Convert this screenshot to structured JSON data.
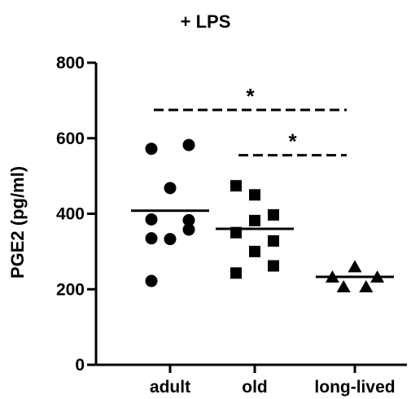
{
  "chart_data": {
    "type": "scatter",
    "title": "+ LPS",
    "xlabel": "",
    "ylabel": "PGE2 (pg/ml)",
    "categories": [
      "adult",
      "old",
      "long-lived"
    ],
    "ylim": [
      0,
      800
    ],
    "yticks": [
      0,
      200,
      400,
      600,
      800
    ],
    "ytick_labels": [
      "0",
      "200",
      "400",
      "600",
      "800"
    ],
    "series": [
      {
        "category": "adult",
        "marker": "circle",
        "mean": 408,
        "points": [
          {
            "dx": -0.25,
            "y": 572
          },
          {
            "dx": 0.25,
            "y": 582
          },
          {
            "dx": 0.0,
            "y": 468
          },
          {
            "dx": -0.25,
            "y": 385
          },
          {
            "dx": 0.25,
            "y": 383
          },
          {
            "dx": -0.25,
            "y": 335
          },
          {
            "dx": 0.0,
            "y": 333
          },
          {
            "dx": 0.25,
            "y": 358
          },
          {
            "dx": -0.25,
            "y": 222
          }
        ]
      },
      {
        "category": "old",
        "marker": "square",
        "mean": 360,
        "points": [
          {
            "dx": -0.25,
            "y": 474
          },
          {
            "dx": 0.0,
            "y": 450
          },
          {
            "dx": 0.25,
            "y": 397
          },
          {
            "dx": 0.0,
            "y": 382
          },
          {
            "dx": -0.25,
            "y": 350
          },
          {
            "dx": 0.25,
            "y": 328
          },
          {
            "dx": 0.0,
            "y": 300
          },
          {
            "dx": 0.25,
            "y": 262
          },
          {
            "dx": -0.25,
            "y": 243
          }
        ]
      },
      {
        "category": "long-lived",
        "marker": "triangle",
        "mean": 233,
        "points": [
          {
            "dx": 0.0,
            "y": 260
          },
          {
            "dx": -0.3,
            "y": 233
          },
          {
            "dx": 0.3,
            "y": 233
          },
          {
            "dx": -0.15,
            "y": 207
          },
          {
            "dx": 0.15,
            "y": 207
          }
        ]
      }
    ],
    "significance": [
      {
        "from": "adult",
        "to": "long-lived",
        "y": 675,
        "label": "*"
      },
      {
        "from": "old",
        "to": "long-lived",
        "y": 555,
        "label": "*"
      }
    ]
  }
}
